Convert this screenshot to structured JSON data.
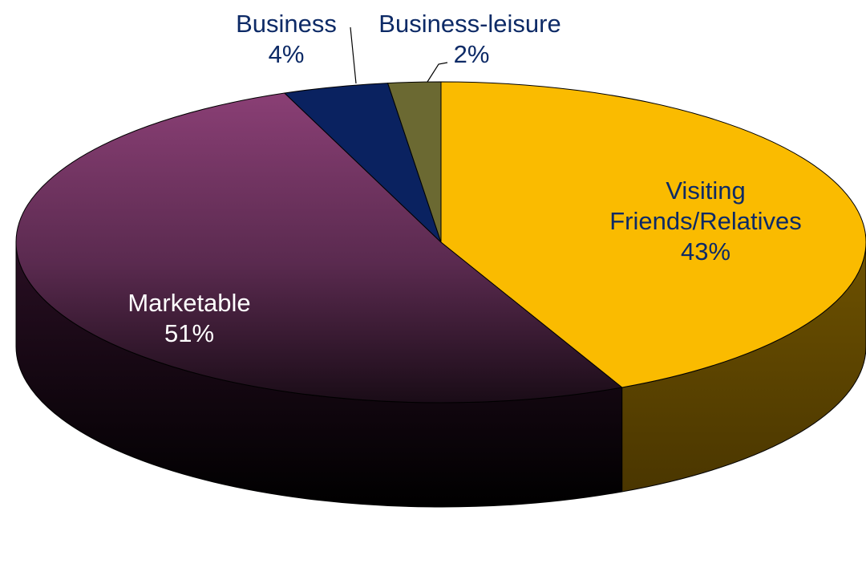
{
  "chart_data": {
    "type": "pie",
    "title": "",
    "style": "3d",
    "series": [
      {
        "name": "Visiting Friends/Relatives",
        "label_lines": [
          "Visiting",
          "Friends/Relatives"
        ],
        "value": 43,
        "display": "43%",
        "color": "#FABB00",
        "label_color": "#0D2A66"
      },
      {
        "name": "Marketable",
        "label_lines": [
          "Marketable"
        ],
        "value": 51,
        "display": "51%",
        "color": "#7E3A6C",
        "label_color": "#FFFFFF"
      },
      {
        "name": "Business",
        "label_lines": [
          "Business"
        ],
        "value": 4,
        "display": "4%",
        "color": "#0A2260",
        "label_color": "#0D2A66"
      },
      {
        "name": "Business-leisure",
        "label_lines": [
          "Business-leisure"
        ],
        "value": 2,
        "display": "2%",
        "color": "#6B6932",
        "label_color": "#0D2A66"
      }
    ]
  }
}
